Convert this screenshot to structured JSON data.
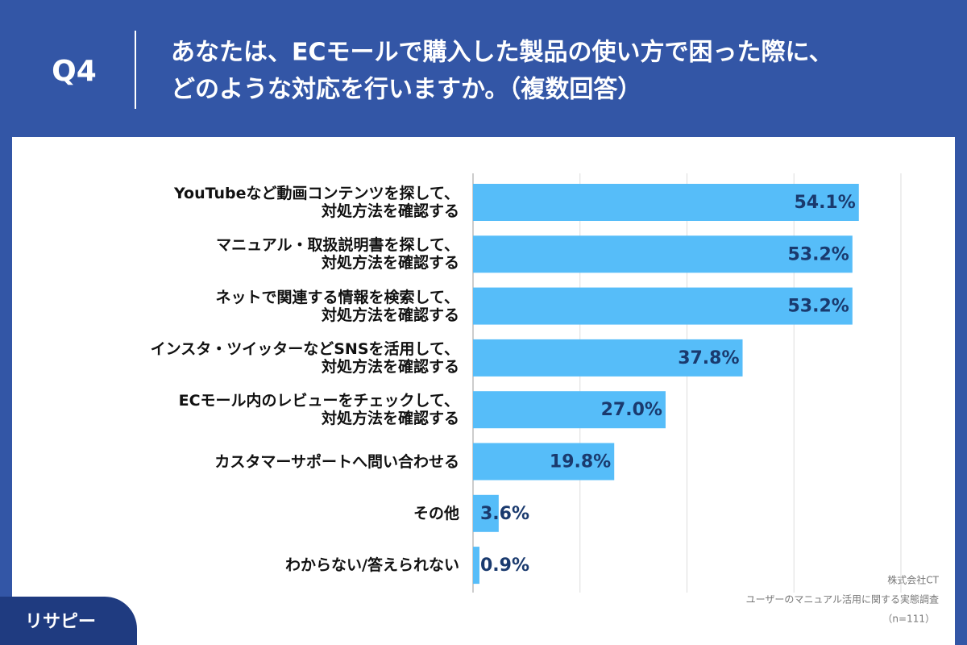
{
  "header": {
    "question": "Q4",
    "title_lines": [
      "あなたは、ECモールで購入した製品の使い方で困った際に、",
      "どのような対応を行いますか。（複数回答）"
    ]
  },
  "chart_data": {
    "type": "bar",
    "orientation": "horizontal",
    "categories": [
      "YouTubeなど動画コンテンツを探して、\n対処方法を確認する",
      "マニュアル・取扱説明書を探して、\n対処方法を確認する",
      "ネットで関連する情報を検索して、\n対処方法を確認する",
      "インスタ・ツイッターなどSNSを活用して、\n対処方法を確認する",
      "ECモール内のレビューをチェックして、\n対処方法を確認する",
      "カスタマーサポートへ問い合わせる",
      "その他",
      "わからない/答えられない"
    ],
    "values": [
      54.1,
      53.2,
      53.2,
      37.8,
      27.0,
      19.8,
      3.6,
      0.9
    ],
    "value_labels": [
      "54.1%",
      "53.2%",
      "53.2%",
      "37.8%",
      "27.0%",
      "19.8%",
      "3.6%",
      "0.9%"
    ],
    "color": "#56bdf9",
    "xlim": [
      0,
      60
    ],
    "xticks": [
      0,
      15,
      30,
      45,
      60
    ],
    "grid": true
  },
  "notes": [
    "株式会社CT",
    "ユーザーのマニュアル活用に関する実態調査",
    "（n=111）"
  ],
  "brand": "リサピー"
}
